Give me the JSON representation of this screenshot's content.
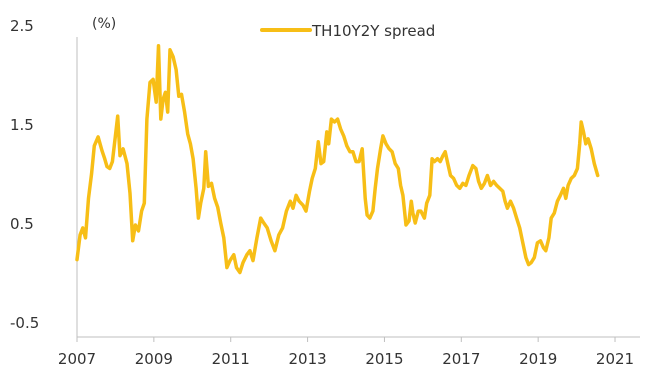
{
  "chart_data": {
    "type": "line",
    "unit_label": "(%)",
    "xlabel": "",
    "ylabel": "",
    "xlim": [
      2007,
      2021.65
    ],
    "ylim": [
      -0.5,
      2.5
    ],
    "x_ticks": [
      2007,
      2009,
      2011,
      2013,
      2015,
      2017,
      2019,
      2021
    ],
    "y_ticks": [
      -0.5,
      0.5,
      1.5,
      2.5
    ],
    "grid": false,
    "legend": "top-center",
    "colors": {
      "series": "#F7BE16",
      "axis": "#bfbfbf",
      "text": "#333333"
    },
    "series": [
      {
        "name": "TH10Y2Y spread",
        "points": [
          [
            2007.0,
            0.13
          ],
          [
            2007.08,
            0.38
          ],
          [
            2007.15,
            0.45
          ],
          [
            2007.22,
            0.35
          ],
          [
            2007.3,
            0.75
          ],
          [
            2007.38,
            1.0
          ],
          [
            2007.45,
            1.28
          ],
          [
            2007.55,
            1.37
          ],
          [
            2007.65,
            1.23
          ],
          [
            2007.72,
            1.15
          ],
          [
            2007.78,
            1.07
          ],
          [
            2007.85,
            1.05
          ],
          [
            2007.92,
            1.12
          ],
          [
            2008.0,
            1.38
          ],
          [
            2008.06,
            1.58
          ],
          [
            2008.12,
            1.18
          ],
          [
            2008.2,
            1.25
          ],
          [
            2008.3,
            1.1
          ],
          [
            2008.38,
            0.8
          ],
          [
            2008.45,
            0.32
          ],
          [
            2008.52,
            0.48
          ],
          [
            2008.6,
            0.42
          ],
          [
            2008.68,
            0.62
          ],
          [
            2008.75,
            0.7
          ],
          [
            2008.82,
            1.55
          ],
          [
            2008.9,
            1.92
          ],
          [
            2008.98,
            1.95
          ],
          [
            2009.06,
            1.72
          ],
          [
            2009.12,
            2.29
          ],
          [
            2009.18,
            1.55
          ],
          [
            2009.24,
            1.75
          ],
          [
            2009.3,
            1.82
          ],
          [
            2009.36,
            1.62
          ],
          [
            2009.42,
            2.25
          ],
          [
            2009.5,
            2.18
          ],
          [
            2009.58,
            2.05
          ],
          [
            2009.65,
            1.78
          ],
          [
            2009.72,
            1.8
          ],
          [
            2009.8,
            1.62
          ],
          [
            2009.88,
            1.4
          ],
          [
            2009.95,
            1.3
          ],
          [
            2010.02,
            1.15
          ],
          [
            2010.1,
            0.85
          ],
          [
            2010.16,
            0.55
          ],
          [
            2010.22,
            0.7
          ],
          [
            2010.3,
            0.85
          ],
          [
            2010.35,
            1.22
          ],
          [
            2010.42,
            0.87
          ],
          [
            2010.5,
            0.9
          ],
          [
            2010.58,
            0.75
          ],
          [
            2010.66,
            0.66
          ],
          [
            2010.74,
            0.5
          ],
          [
            2010.82,
            0.35
          ],
          [
            2010.9,
            0.05
          ],
          [
            2010.98,
            0.12
          ],
          [
            2011.08,
            0.18
          ],
          [
            2011.15,
            0.05
          ],
          [
            2011.24,
            0.0
          ],
          [
            2011.32,
            0.1
          ],
          [
            2011.42,
            0.18
          ],
          [
            2011.5,
            0.22
          ],
          [
            2011.58,
            0.12
          ],
          [
            2011.68,
            0.35
          ],
          [
            2011.78,
            0.55
          ],
          [
            2011.86,
            0.5
          ],
          [
            2011.95,
            0.45
          ],
          [
            2012.05,
            0.32
          ],
          [
            2012.15,
            0.22
          ],
          [
            2012.25,
            0.38
          ],
          [
            2012.35,
            0.45
          ],
          [
            2012.45,
            0.62
          ],
          [
            2012.55,
            0.72
          ],
          [
            2012.62,
            0.65
          ],
          [
            2012.7,
            0.78
          ],
          [
            2012.78,
            0.72
          ],
          [
            2012.88,
            0.68
          ],
          [
            2012.96,
            0.62
          ],
          [
            2013.05,
            0.82
          ],
          [
            2013.12,
            0.95
          ],
          [
            2013.2,
            1.05
          ],
          [
            2013.28,
            1.32
          ],
          [
            2013.35,
            1.1
          ],
          [
            2013.42,
            1.12
          ],
          [
            2013.5,
            1.42
          ],
          [
            2013.55,
            1.3
          ],
          [
            2013.62,
            1.55
          ],
          [
            2013.7,
            1.52
          ],
          [
            2013.78,
            1.55
          ],
          [
            2013.86,
            1.45
          ],
          [
            2013.94,
            1.38
          ],
          [
            2014.02,
            1.28
          ],
          [
            2014.1,
            1.22
          ],
          [
            2014.18,
            1.22
          ],
          [
            2014.26,
            1.12
          ],
          [
            2014.34,
            1.12
          ],
          [
            2014.42,
            1.25
          ],
          [
            2014.5,
            0.75
          ],
          [
            2014.55,
            0.58
          ],
          [
            2014.62,
            0.55
          ],
          [
            2014.7,
            0.62
          ],
          [
            2014.76,
            0.85
          ],
          [
            2014.82,
            1.05
          ],
          [
            2014.9,
            1.25
          ],
          [
            2014.96,
            1.38
          ],
          [
            2015.04,
            1.3
          ],
          [
            2015.12,
            1.25
          ],
          [
            2015.2,
            1.22
          ],
          [
            2015.28,
            1.1
          ],
          [
            2015.36,
            1.05
          ],
          [
            2015.42,
            0.88
          ],
          [
            2015.48,
            0.78
          ],
          [
            2015.56,
            0.48
          ],
          [
            2015.64,
            0.52
          ],
          [
            2015.7,
            0.72
          ],
          [
            2015.74,
            0.6
          ],
          [
            2015.8,
            0.5
          ],
          [
            2015.88,
            0.62
          ],
          [
            2015.95,
            0.62
          ],
          [
            2016.04,
            0.55
          ],
          [
            2016.1,
            0.7
          ],
          [
            2016.18,
            0.78
          ],
          [
            2016.24,
            1.15
          ],
          [
            2016.3,
            1.12
          ],
          [
            2016.38,
            1.15
          ],
          [
            2016.45,
            1.12
          ],
          [
            2016.52,
            1.18
          ],
          [
            2016.58,
            1.22
          ],
          [
            2016.65,
            1.1
          ],
          [
            2016.72,
            0.98
          ],
          [
            2016.8,
            0.95
          ],
          [
            2016.88,
            0.88
          ],
          [
            2016.96,
            0.85
          ],
          [
            2017.04,
            0.9
          ],
          [
            2017.12,
            0.88
          ],
          [
            2017.2,
            0.98
          ],
          [
            2017.3,
            1.08
          ],
          [
            2017.38,
            1.05
          ],
          [
            2017.45,
            0.92
          ],
          [
            2017.52,
            0.85
          ],
          [
            2017.6,
            0.9
          ],
          [
            2017.68,
            0.98
          ],
          [
            2017.76,
            0.88
          ],
          [
            2017.84,
            0.92
          ],
          [
            2017.92,
            0.88
          ],
          [
            2018.0,
            0.85
          ],
          [
            2018.08,
            0.82
          ],
          [
            2018.14,
            0.72
          ],
          [
            2018.2,
            0.65
          ],
          [
            2018.28,
            0.72
          ],
          [
            2018.36,
            0.65
          ],
          [
            2018.44,
            0.55
          ],
          [
            2018.52,
            0.45
          ],
          [
            2018.6,
            0.3
          ],
          [
            2018.68,
            0.15
          ],
          [
            2018.75,
            0.08
          ],
          [
            2018.82,
            0.1
          ],
          [
            2018.9,
            0.15
          ],
          [
            2018.98,
            0.3
          ],
          [
            2019.06,
            0.32
          ],
          [
            2019.14,
            0.25
          ],
          [
            2019.2,
            0.22
          ],
          [
            2019.28,
            0.35
          ],
          [
            2019.34,
            0.55
          ],
          [
            2019.42,
            0.6
          ],
          [
            2019.5,
            0.72
          ],
          [
            2019.58,
            0.78
          ],
          [
            2019.66,
            0.85
          ],
          [
            2019.72,
            0.75
          ],
          [
            2019.78,
            0.88
          ],
          [
            2019.86,
            0.95
          ],
          [
            2019.94,
            0.98
          ],
          [
            2020.02,
            1.05
          ],
          [
            2020.08,
            1.3
          ],
          [
            2020.12,
            1.52
          ],
          [
            2020.18,
            1.42
          ],
          [
            2020.24,
            1.3
          ],
          [
            2020.3,
            1.35
          ],
          [
            2020.38,
            1.25
          ],
          [
            2020.46,
            1.1
          ],
          [
            2020.55,
            0.98
          ]
        ]
      }
    ]
  }
}
